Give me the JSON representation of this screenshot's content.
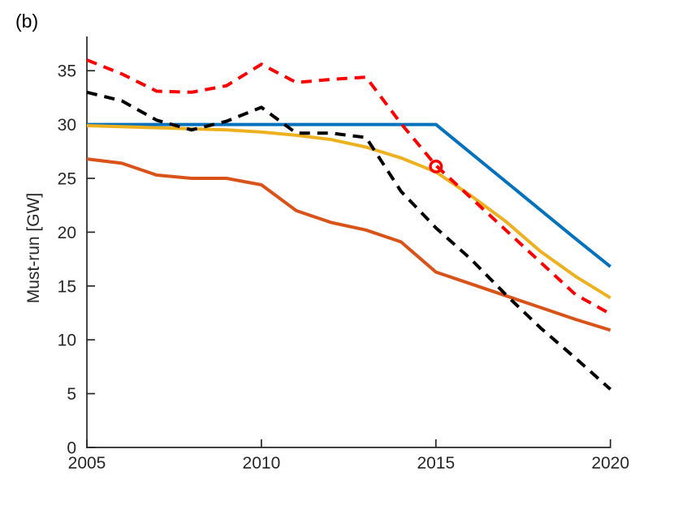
{
  "panel_label": "(b)",
  "chart_data": {
    "type": "line",
    "title": "",
    "xlabel": "",
    "ylabel": "Must-run [GW]",
    "x": [
      2005,
      2006,
      2007,
      2008,
      2009,
      2010,
      2011,
      2012,
      2013,
      2014,
      2015,
      2016,
      2017,
      2018,
      2019,
      2020
    ],
    "xlim": [
      2005,
      2020
    ],
    "ylim": [
      0,
      38.2
    ],
    "xticks": [
      "2005",
      "2010",
      "2015",
      "2020"
    ],
    "xtick_values": [
      2005,
      2010,
      2015,
      2020
    ],
    "yticks": [
      "0",
      "5",
      "10",
      "15",
      "20",
      "25",
      "30",
      "35"
    ],
    "ytick_values": [
      0,
      5,
      10,
      15,
      20,
      25,
      30,
      35
    ],
    "grid": false,
    "legend": "none",
    "axis_color": "#262626",
    "background": "#ffffff",
    "series": [
      {
        "name": "blue-solid",
        "color": "#0072BD",
        "style": "solid",
        "values": [
          30,
          30,
          30,
          30,
          30,
          30,
          30,
          30,
          30,
          30,
          30,
          27.35,
          24.7,
          22.05,
          19.4,
          16.8
        ]
      },
      {
        "name": "yellow-solid",
        "color": "#EDB120",
        "style": "solid",
        "values": [
          29.9,
          29.8,
          29.7,
          29.6,
          29.5,
          29.3,
          29.0,
          28.6,
          27.9,
          26.9,
          25.6,
          23.4,
          21.0,
          18.2,
          15.9,
          13.9
        ]
      },
      {
        "name": "orange-solid",
        "color": "#D95319",
        "style": "solid",
        "values": [
          26.8,
          26.4,
          25.3,
          25.0,
          25.0,
          24.4,
          22.0,
          20.9,
          20.2,
          19.1,
          16.3,
          15.2,
          14.1,
          13.0,
          11.9,
          10.9
        ]
      },
      {
        "name": "black-dashed",
        "color": "#000000",
        "style": "dashed",
        "values": [
          33.0,
          32.2,
          30.4,
          29.5,
          30.3,
          31.6,
          29.2,
          29.2,
          28.8,
          23.8,
          20.4,
          17.5,
          14.2,
          11.1,
          8.3,
          5.4
        ]
      },
      {
        "name": "red-dashed",
        "color": "#FF0000",
        "style": "dashed",
        "values": [
          36.0,
          34.7,
          33.1,
          33.0,
          33.6,
          35.6,
          33.9,
          34.2,
          34.4,
          30.1,
          26.2,
          23.2,
          20.2,
          17.2,
          14.2,
          12.4
        ]
      }
    ],
    "annotation_marker": {
      "shape": "open-circle",
      "x": 2015,
      "y": 26.1,
      "color": "#FF0000"
    }
  }
}
